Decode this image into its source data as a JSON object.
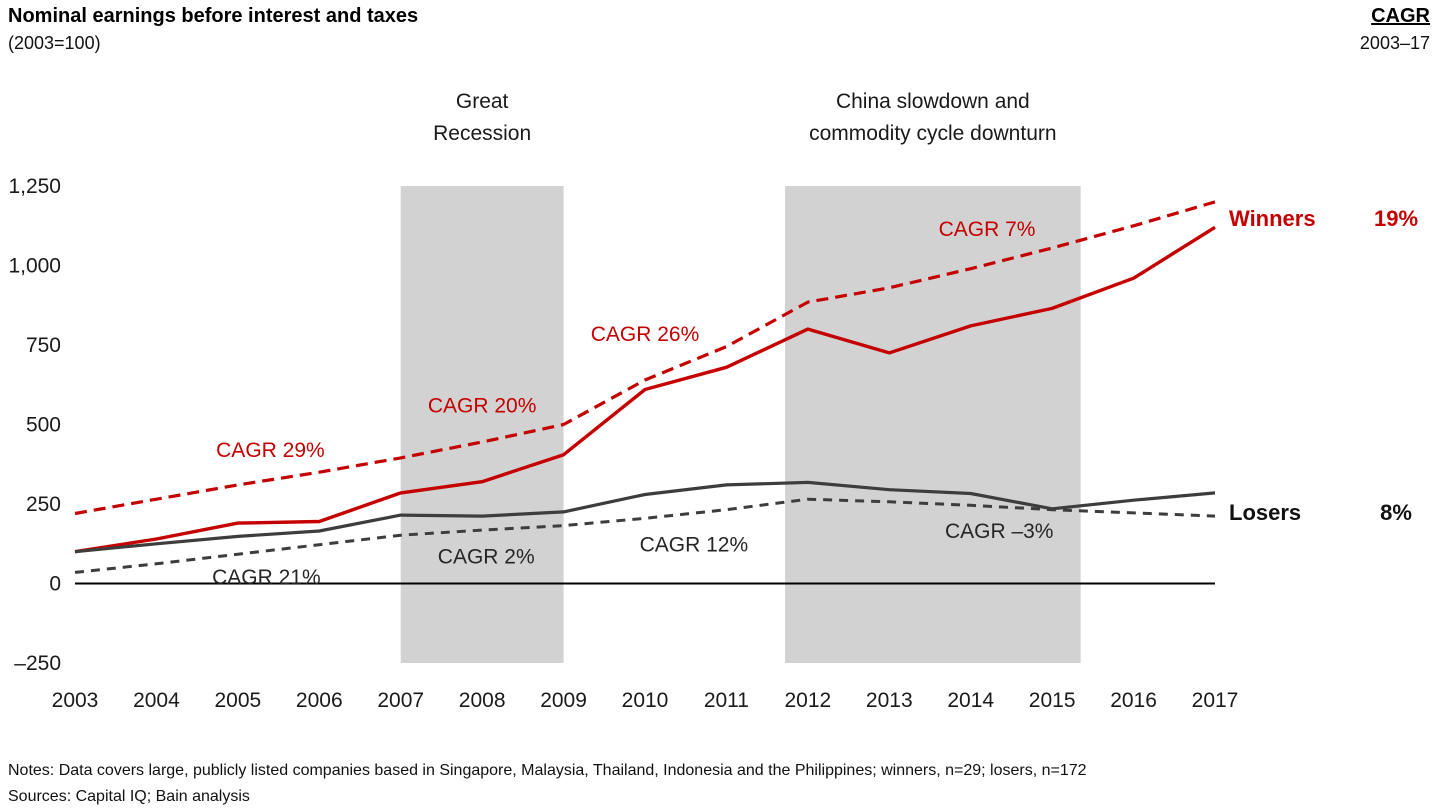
{
  "header": {
    "title": "Nominal earnings before interest and taxes",
    "subtitle": "(2003=100)",
    "cagr_label": "CAGR",
    "cagr_period": "2003–17"
  },
  "chart_data": {
    "type": "line",
    "title": "Nominal earnings before interest and taxes (2003=100)",
    "x": [
      2003,
      2004,
      2005,
      2006,
      2007,
      2008,
      2009,
      2010,
      2011,
      2012,
      2013,
      2014,
      2015,
      2016,
      2017
    ],
    "ylim": [
      -250,
      1250
    ],
    "yticks": [
      {
        "value": 1250,
        "label": "1,250"
      },
      {
        "value": 1000,
        "label": "1,000"
      },
      {
        "value": 750,
        "label": "750"
      },
      {
        "value": 500,
        "label": "500"
      },
      {
        "value": 250,
        "label": "250"
      },
      {
        "value": 0,
        "label": "0"
      },
      {
        "value": -250,
        "label": "–250"
      }
    ],
    "grid": false,
    "series": [
      {
        "name": "Winners",
        "style": "solid",
        "color": "#c50000",
        "width": 3.4,
        "values": [
          100,
          140,
          190,
          195,
          285,
          320,
          405,
          610,
          680,
          800,
          725,
          810,
          865,
          960,
          1120
        ]
      },
      {
        "name": "Winners trend",
        "style": "dashed",
        "color": "#c50000",
        "width": 3.2,
        "dash": "12,7",
        "values": [
          220,
          265,
          310,
          350,
          395,
          445,
          500,
          640,
          745,
          885,
          930,
          990,
          1055,
          1125,
          1200
        ]
      },
      {
        "name": "Losers",
        "style": "solid",
        "color": "#3d3d3d",
        "width": 3.2,
        "values": [
          100,
          125,
          148,
          165,
          215,
          212,
          225,
          280,
          310,
          318,
          295,
          283,
          235,
          262,
          285
        ]
      },
      {
        "name": "Losers trend",
        "style": "dashed",
        "color": "#3d3d3d",
        "width": 3,
        "dash": "9,7",
        "values": [
          35,
          62,
          92,
          122,
          152,
          168,
          182,
          205,
          232,
          265,
          257,
          246,
          232,
          222,
          212
        ]
      }
    ],
    "bands": [
      {
        "from": 2007,
        "to": 2009,
        "color": "#d2d2d2",
        "label_lines": [
          "Great",
          "Recession"
        ]
      },
      {
        "from": 2011.72,
        "to": 2015.35,
        "color": "#d2d2d2",
        "label_lines": [
          "China slowdown and",
          "commodity cycle downturn"
        ]
      }
    ],
    "annotations": [
      {
        "text": "CAGR 29%",
        "x": 2005.4,
        "y": 420,
        "color": "#c50000"
      },
      {
        "text": "CAGR 20%",
        "x": 2008.0,
        "y": 560,
        "color": "#c50000"
      },
      {
        "text": "CAGR 26%",
        "x": 2010.0,
        "y": 785,
        "color": "#c50000"
      },
      {
        "text": "CAGR 7%",
        "x": 2014.2,
        "y": 1115,
        "color": "#c50000"
      },
      {
        "text": "CAGR 21%",
        "x": 2005.35,
        "y": 20,
        "color": "#262626"
      },
      {
        "text": "CAGR 2%",
        "x": 2008.05,
        "y": 85,
        "color": "#262626"
      },
      {
        "text": "CAGR 12%",
        "x": 2010.6,
        "y": 122,
        "color": "#262626"
      },
      {
        "text": "CAGR –3%",
        "x": 2014.35,
        "y": 165,
        "color": "#262626"
      }
    ],
    "end_labels": [
      {
        "text": "Winners",
        "cagr": "19%",
        "color": "#c50000",
        "y": 1150
      },
      {
        "text": "Losers",
        "cagr": "8%",
        "color": "#111111",
        "y": 225
      }
    ],
    "legend_position": "right-of-lines"
  },
  "footer": {
    "notes": "Notes: Data covers large, publicly listed companies based in Singapore, Malaysia, Thailand, Indonesia and the Philippines; winners, n=29; losers, n=172",
    "sources": "Sources: Capital IQ; Bain analysis"
  }
}
